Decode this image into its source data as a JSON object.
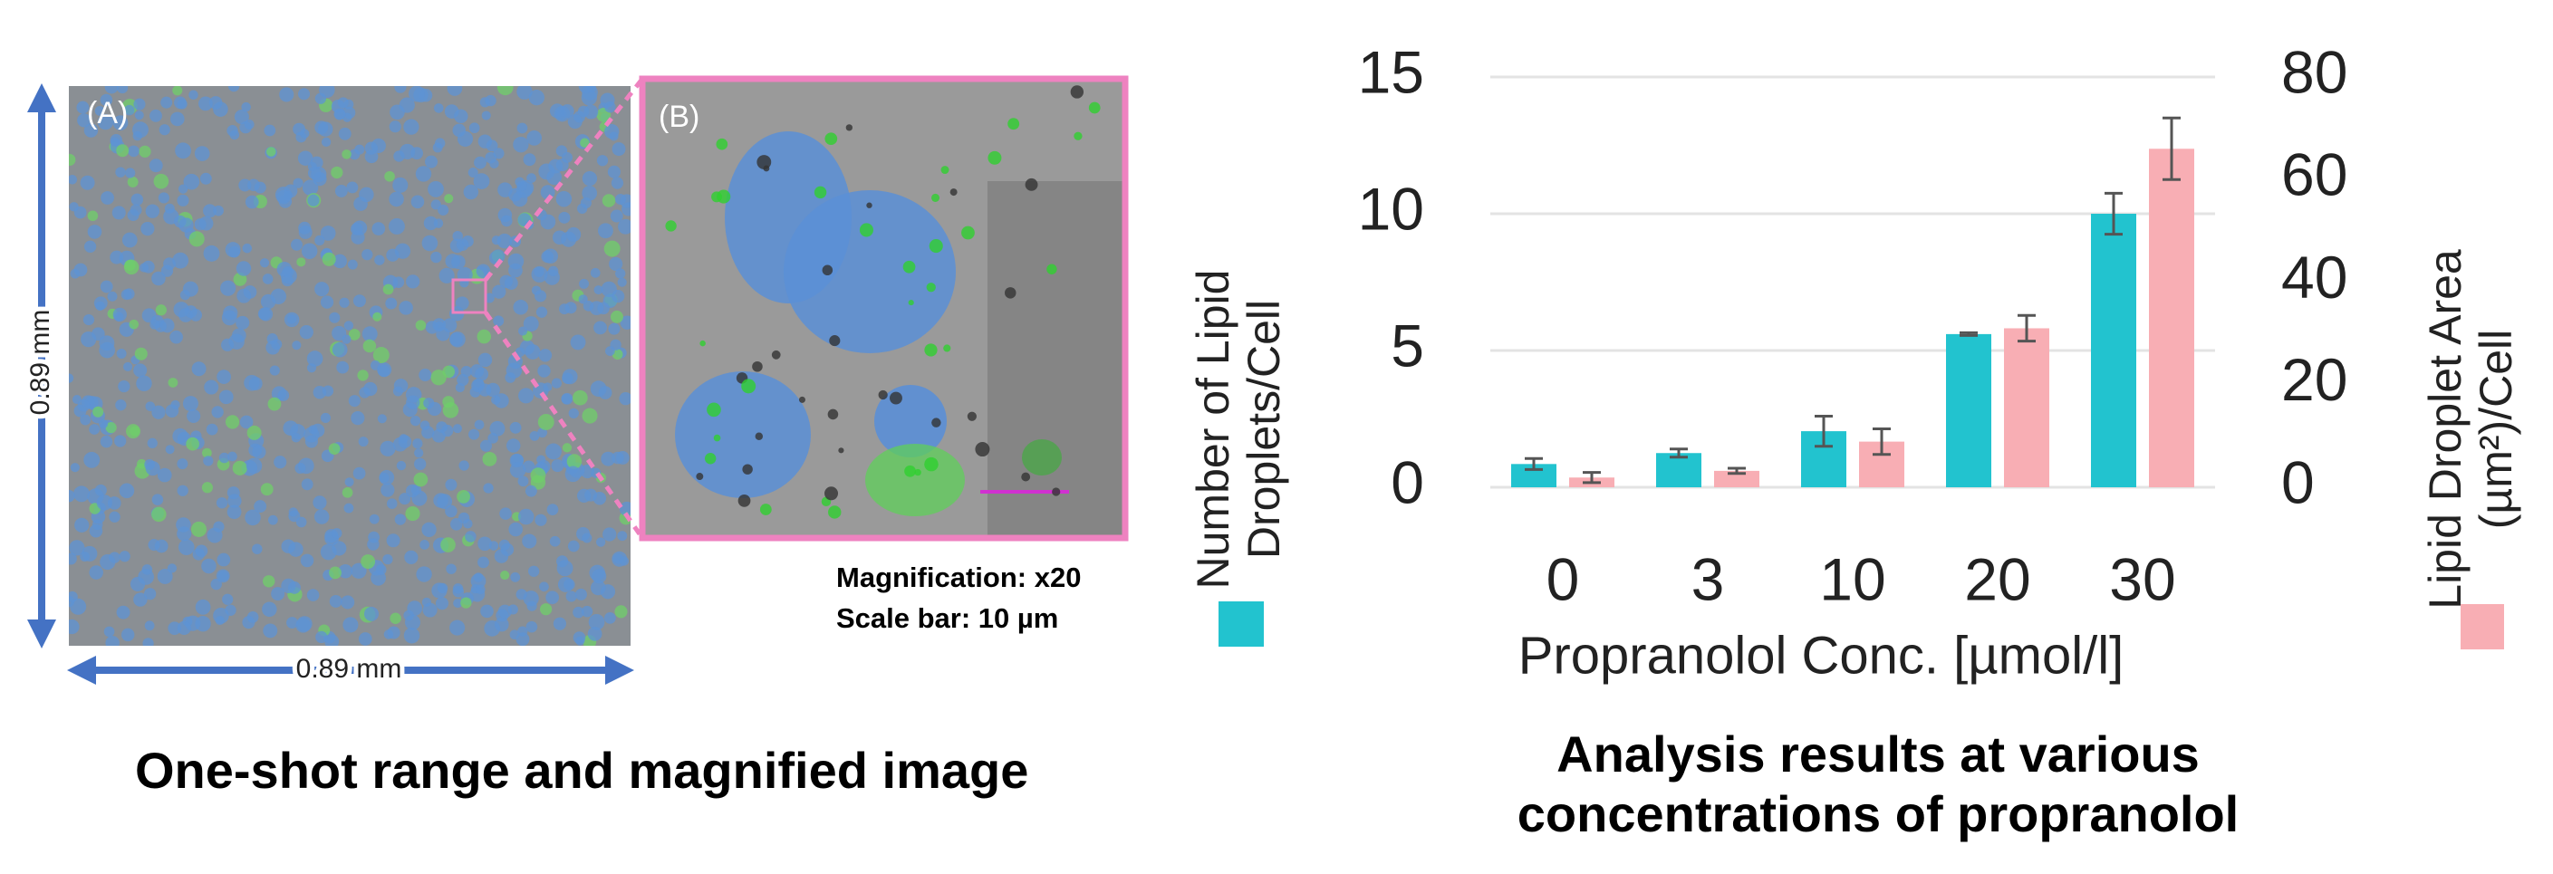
{
  "left_panel": {
    "panel_a_label": "(A)",
    "panel_b_label": "(B)",
    "height_label": "0.89 mm",
    "width_label": "0.89 mm",
    "magnification": "Magnification: x20",
    "scale_bar": "Scale bar: 10 µm",
    "caption": "One-shot range and magnified image"
  },
  "chart_data": {
    "type": "bar",
    "xlabel": "Propranolol Conc. [µmol/l]",
    "caption": "Analysis results at various concentrations of propranolol",
    "categories": [
      "0",
      "3",
      "10",
      "20",
      "30"
    ],
    "series": [
      {
        "name": "Number of Lipid Droplets/Cell",
        "color": "#22c3cf",
        "axis": "y",
        "values": [
          0.85,
          1.25,
          2.05,
          5.6,
          10.0
        ],
        "errors": [
          0.2,
          0.15,
          0.55,
          0.05,
          0.75
        ]
      },
      {
        "name": "Lipid Droplet Area (µm²)/Cell",
        "color": "#f8aeb4",
        "axis": "y2",
        "values": [
          1.9,
          3.2,
          8.9,
          31,
          66
        ],
        "errors": [
          1,
          0.5,
          2.5,
          2.5,
          6
        ]
      }
    ],
    "ylim": [
      0,
      15
    ],
    "yticks": [
      0,
      5,
      10,
      15
    ],
    "y2lim": [
      0,
      80
    ],
    "y2ticks": [
      0,
      20,
      40,
      60,
      80
    ],
    "grid": true
  }
}
